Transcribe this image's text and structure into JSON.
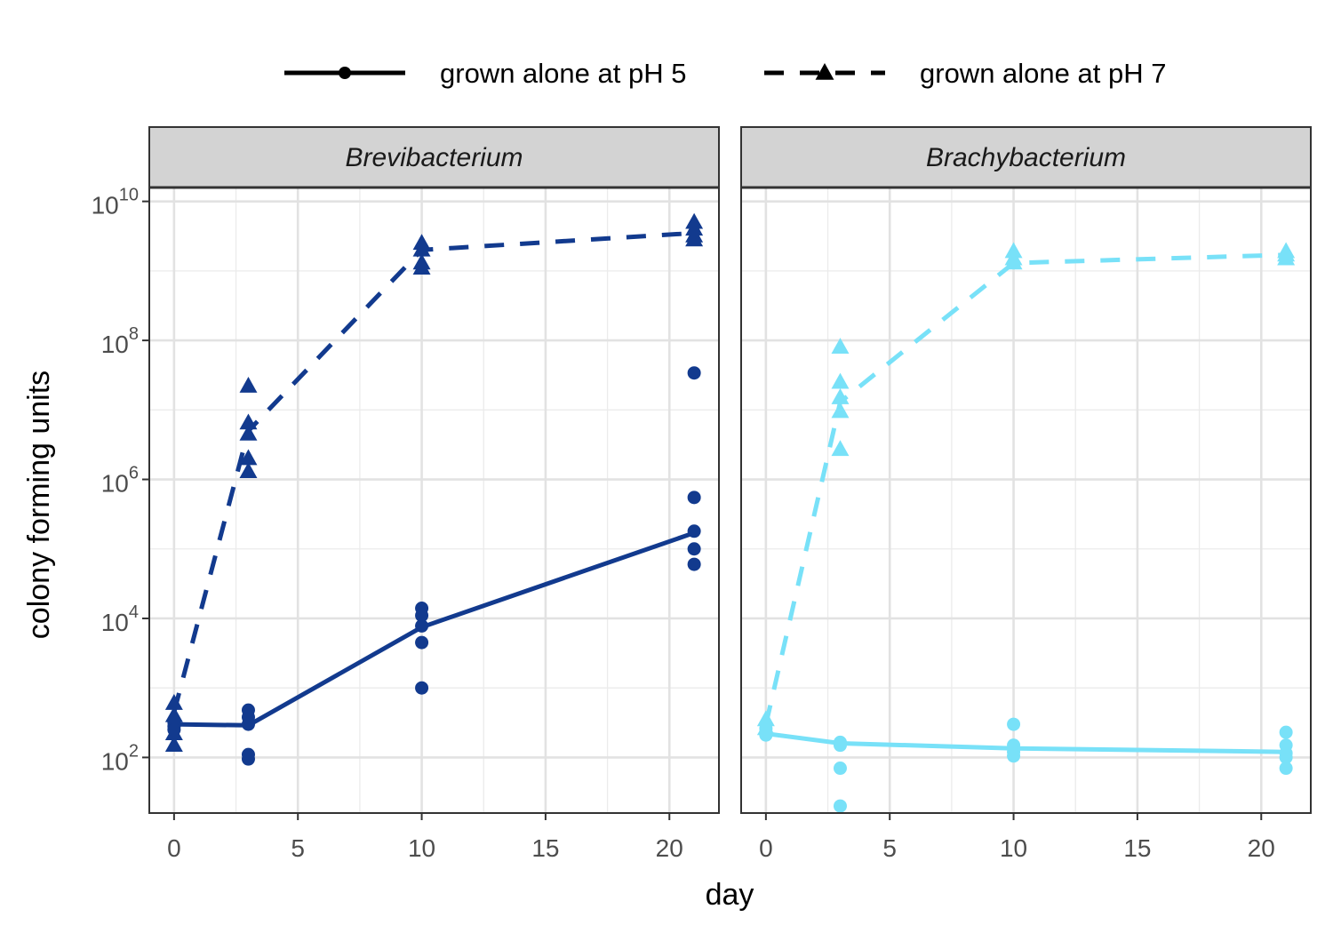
{
  "chart_data": {
    "type": "line",
    "xlabel": "day",
    "ylabel": "colony forming units",
    "y_scale": "log10",
    "xlim": [
      -1,
      22
    ],
    "ylim_log10": [
      1.2,
      10.2
    ],
    "x_ticks": [
      "0",
      "5",
      "10",
      "15",
      "20"
    ],
    "y_tick_base": "10",
    "y_tick_exponents": [
      "2",
      "4",
      "6",
      "8",
      "10"
    ],
    "grid": true,
    "legend_position": "top",
    "legend": [
      {
        "label": "grown alone at pH 5",
        "linetype": "solid",
        "marker": "circle"
      },
      {
        "label": "grown alone at pH 7",
        "linetype": "dashed",
        "marker": "triangle"
      }
    ],
    "panels": [
      {
        "strip": "Brevibacterium",
        "color": "#123a8e",
        "series": [
          {
            "linetype": "solid",
            "marker": "circle",
            "mean_x": [
              0,
              3,
              10,
              21
            ],
            "mean_y": [
              300,
              290,
              7500,
              170000
            ],
            "points": [
              [
                0,
                320
              ],
              [
                0,
                280
              ],
              [
                0,
                250
              ],
              [
                3,
                480
              ],
              [
                3,
                380
              ],
              [
                3,
                300
              ],
              [
                3,
                110
              ],
              [
                3,
                95
              ],
              [
                10,
                14000
              ],
              [
                10,
                11000
              ],
              [
                10,
                7800
              ],
              [
                10,
                4500
              ],
              [
                10,
                1000
              ],
              [
                21,
                34000000
              ],
              [
                21,
                550000
              ],
              [
                21,
                180000
              ],
              [
                21,
                100000
              ],
              [
                21,
                60000
              ]
            ]
          },
          {
            "linetype": "dashed",
            "marker": "triangle",
            "mean_x": [
              0,
              3,
              10,
              21
            ],
            "mean_y": [
              450,
              5000000,
              2000000000,
              3500000000
            ],
            "points": [
              [
                0,
                600
              ],
              [
                0,
                400
              ],
              [
                0,
                220
              ],
              [
                0,
                150
              ],
              [
                3,
                22000000
              ],
              [
                3,
                6500000
              ],
              [
                3,
                4500000
              ],
              [
                3,
                2000000
              ],
              [
                3,
                1300000
              ],
              [
                10,
                2500000000
              ],
              [
                10,
                2000000000
              ],
              [
                10,
                1300000000
              ],
              [
                10,
                1100000000
              ],
              [
                21,
                5000000000
              ],
              [
                21,
                4000000000
              ],
              [
                21,
                3200000000
              ],
              [
                21,
                2800000000
              ]
            ]
          }
        ]
      },
      {
        "strip": "Brachybacterium",
        "color": "#78e1f8",
        "series": [
          {
            "linetype": "solid",
            "marker": "circle",
            "mean_x": [
              0,
              3,
              10,
              21
            ],
            "mean_y": [
              220,
              160,
              135,
              120
            ],
            "points": [
              [
                0,
                260
              ],
              [
                0,
                230
              ],
              [
                0,
                210
              ],
              [
                3,
                165
              ],
              [
                3,
                150
              ],
              [
                3,
                70
              ],
              [
                3,
                20
              ],
              [
                10,
                300
              ],
              [
                10,
                150
              ],
              [
                10,
                120
              ],
              [
                10,
                105
              ],
              [
                21,
                230
              ],
              [
                21,
                150
              ],
              [
                21,
                115
              ],
              [
                21,
                100
              ],
              [
                21,
                70
              ]
            ]
          },
          {
            "linetype": "dashed",
            "marker": "triangle",
            "mean_x": [
              0,
              3,
              10,
              21
            ],
            "mean_y": [
              300,
              13000000,
              1300000000,
              1700000000
            ],
            "points": [
              [
                0,
                350
              ],
              [
                0,
                260
              ],
              [
                3,
                80000000
              ],
              [
                3,
                25000000
              ],
              [
                3,
                15000000
              ],
              [
                3,
                9500000
              ],
              [
                3,
                2700000
              ],
              [
                10,
                1900000000
              ],
              [
                10,
                1500000000
              ],
              [
                10,
                1300000000
              ],
              [
                21,
                1900000000
              ],
              [
                21,
                1700000000
              ],
              [
                21,
                1500000000
              ]
            ]
          }
        ]
      }
    ]
  }
}
